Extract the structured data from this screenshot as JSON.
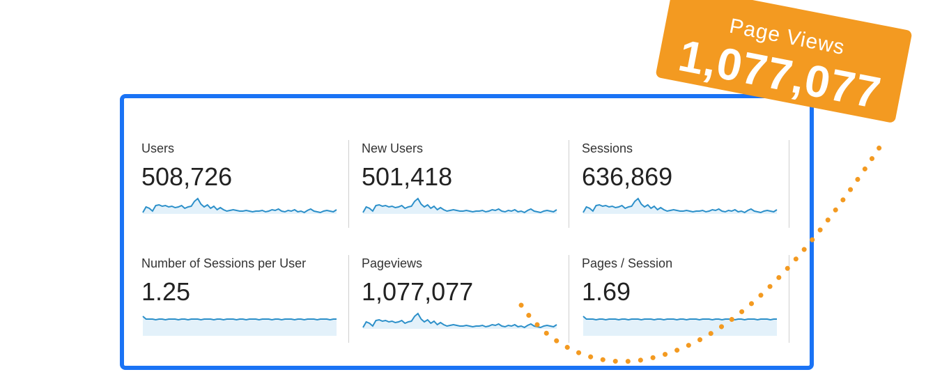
{
  "metrics": [
    {
      "label": "Users",
      "value": "508,726",
      "sparkline": "variable"
    },
    {
      "label": "New Users",
      "value": "501,418",
      "sparkline": "variable"
    },
    {
      "label": "Sessions",
      "value": "636,869",
      "sparkline": "variable"
    },
    {
      "label": "Number of Sessions per User",
      "value": "1.25",
      "sparkline": "flat"
    },
    {
      "label": "Pageviews",
      "value": "1,077,077",
      "sparkline": "variable"
    },
    {
      "label": "Pages / Session",
      "value": "1.69",
      "sparkline": "flat"
    }
  ],
  "callout": {
    "label": "Page Views",
    "value": "1,077,077"
  },
  "colors": {
    "panel_border": "#1a73f5",
    "sparkline_line": "#2b8fc9",
    "sparkline_fill": "#e3f1fa",
    "callout_bg": "#f39a21",
    "connector_dots": "#f39a21"
  }
}
